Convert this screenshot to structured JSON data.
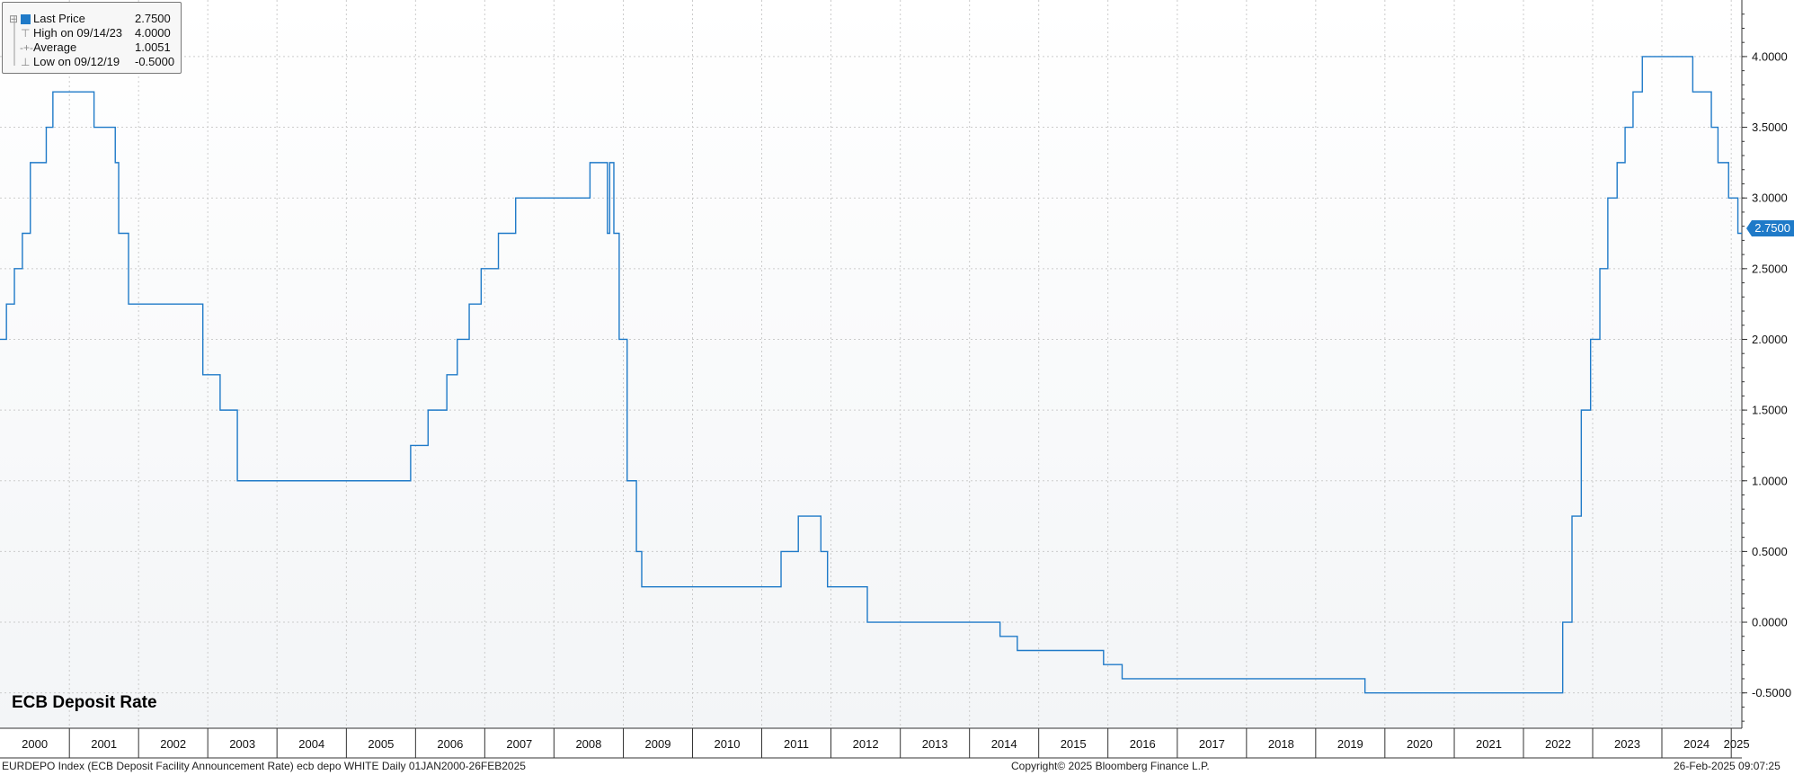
{
  "chart_data": {
    "type": "line",
    "title": "ECB Deposit Rate",
    "colors": {
      "line": "#1f7ac8",
      "grid": "#cccccc",
      "axis": "#333333",
      "background_top": "#ffffff",
      "background_bottom": "#f3f5f7"
    },
    "x_range": [
      "2000-01-01",
      "2025-02-26"
    ],
    "ylim": [
      -0.75,
      4.4
    ],
    "grid": true,
    "legend_position": "top-left",
    "y_ticks": [
      "-0.5000",
      "0.0000",
      "0.5000",
      "1.0000",
      "1.5000",
      "2.0000",
      "2.5000",
      "3.0000",
      "3.5000",
      "4.0000"
    ],
    "x_tick_labels": [
      "2000",
      "2001",
      "2002",
      "2003",
      "2004",
      "2005",
      "2006",
      "2007",
      "2008",
      "2009",
      "2010",
      "2011",
      "2012",
      "2013",
      "2014",
      "2015",
      "2016",
      "2017",
      "2018",
      "2019",
      "2020",
      "2021",
      "2022",
      "2023",
      "2024",
      "2025"
    ],
    "series": [
      {
        "name": "Last Price",
        "points": [
          [
            "2000-01-01",
            2.0
          ],
          [
            "2000-02-04",
            2.25
          ],
          [
            "2000-03-17",
            2.5
          ],
          [
            "2000-04-28",
            2.75
          ],
          [
            "2000-06-09",
            3.25
          ],
          [
            "2000-09-01",
            3.5
          ],
          [
            "2000-10-06",
            3.75
          ],
          [
            "2001-05-11",
            3.5
          ],
          [
            "2001-08-31",
            3.25
          ],
          [
            "2001-09-18",
            2.75
          ],
          [
            "2001-11-09",
            2.25
          ],
          [
            "2002-12-06",
            1.75
          ],
          [
            "2003-03-07",
            1.5
          ],
          [
            "2003-06-06",
            1.0
          ],
          [
            "2005-12-06",
            1.25
          ],
          [
            "2006-03-08",
            1.5
          ],
          [
            "2006-06-15",
            1.75
          ],
          [
            "2006-08-09",
            2.0
          ],
          [
            "2006-10-11",
            2.25
          ],
          [
            "2006-12-13",
            2.5
          ],
          [
            "2007-03-14",
            2.75
          ],
          [
            "2007-06-13",
            3.0
          ],
          [
            "2008-07-09",
            3.25
          ],
          [
            "2008-10-09",
            2.75
          ],
          [
            "2008-10-21",
            3.25
          ],
          [
            "2008-11-12",
            2.75
          ],
          [
            "2008-12-10",
            2.0
          ],
          [
            "2009-01-21",
            1.0
          ],
          [
            "2009-03-11",
            0.5
          ],
          [
            "2009-04-08",
            0.25
          ],
          [
            "2011-04-13",
            0.5
          ],
          [
            "2011-07-13",
            0.75
          ],
          [
            "2011-11-09",
            0.5
          ],
          [
            "2011-12-14",
            0.25
          ],
          [
            "2012-07-11",
            0.0
          ],
          [
            "2014-06-11",
            -0.1
          ],
          [
            "2014-09-10",
            -0.2
          ],
          [
            "2015-12-09",
            -0.3
          ],
          [
            "2016-03-16",
            -0.4
          ],
          [
            "2019-09-18",
            -0.5
          ],
          [
            "2022-07-27",
            0.0
          ],
          [
            "2022-09-14",
            0.75
          ],
          [
            "2022-11-02",
            1.5
          ],
          [
            "2022-12-21",
            2.0
          ],
          [
            "2023-02-08",
            2.5
          ],
          [
            "2023-03-22",
            3.0
          ],
          [
            "2023-05-10",
            3.25
          ],
          [
            "2023-06-21",
            3.5
          ],
          [
            "2023-08-02",
            3.75
          ],
          [
            "2023-09-20",
            4.0
          ],
          [
            "2024-06-12",
            3.75
          ],
          [
            "2024-09-18",
            3.5
          ],
          [
            "2024-10-23",
            3.25
          ],
          [
            "2024-12-18",
            3.0
          ],
          [
            "2025-02-05",
            2.75
          ],
          [
            "2025-02-26",
            2.75
          ]
        ]
      }
    ]
  },
  "legend": {
    "items": [
      {
        "label": "Last Price",
        "value": "2.7500"
      },
      {
        "label": "High on 09/14/23",
        "value": "4.0000"
      },
      {
        "label": "Average",
        "value": "1.0051"
      },
      {
        "label": "Low on 09/12/19",
        "value": "-0.5000"
      }
    ]
  },
  "last_value_tag": "2.7500",
  "footer": {
    "left": "EURDEPO Index (ECB Deposit Facility Announcement Rate) ecb depo WHITE  Daily 01JAN2000-26FEB2025",
    "center": "Copyright© 2025 Bloomberg Finance L.P.",
    "right": "26-Feb-2025 09:07:25"
  }
}
